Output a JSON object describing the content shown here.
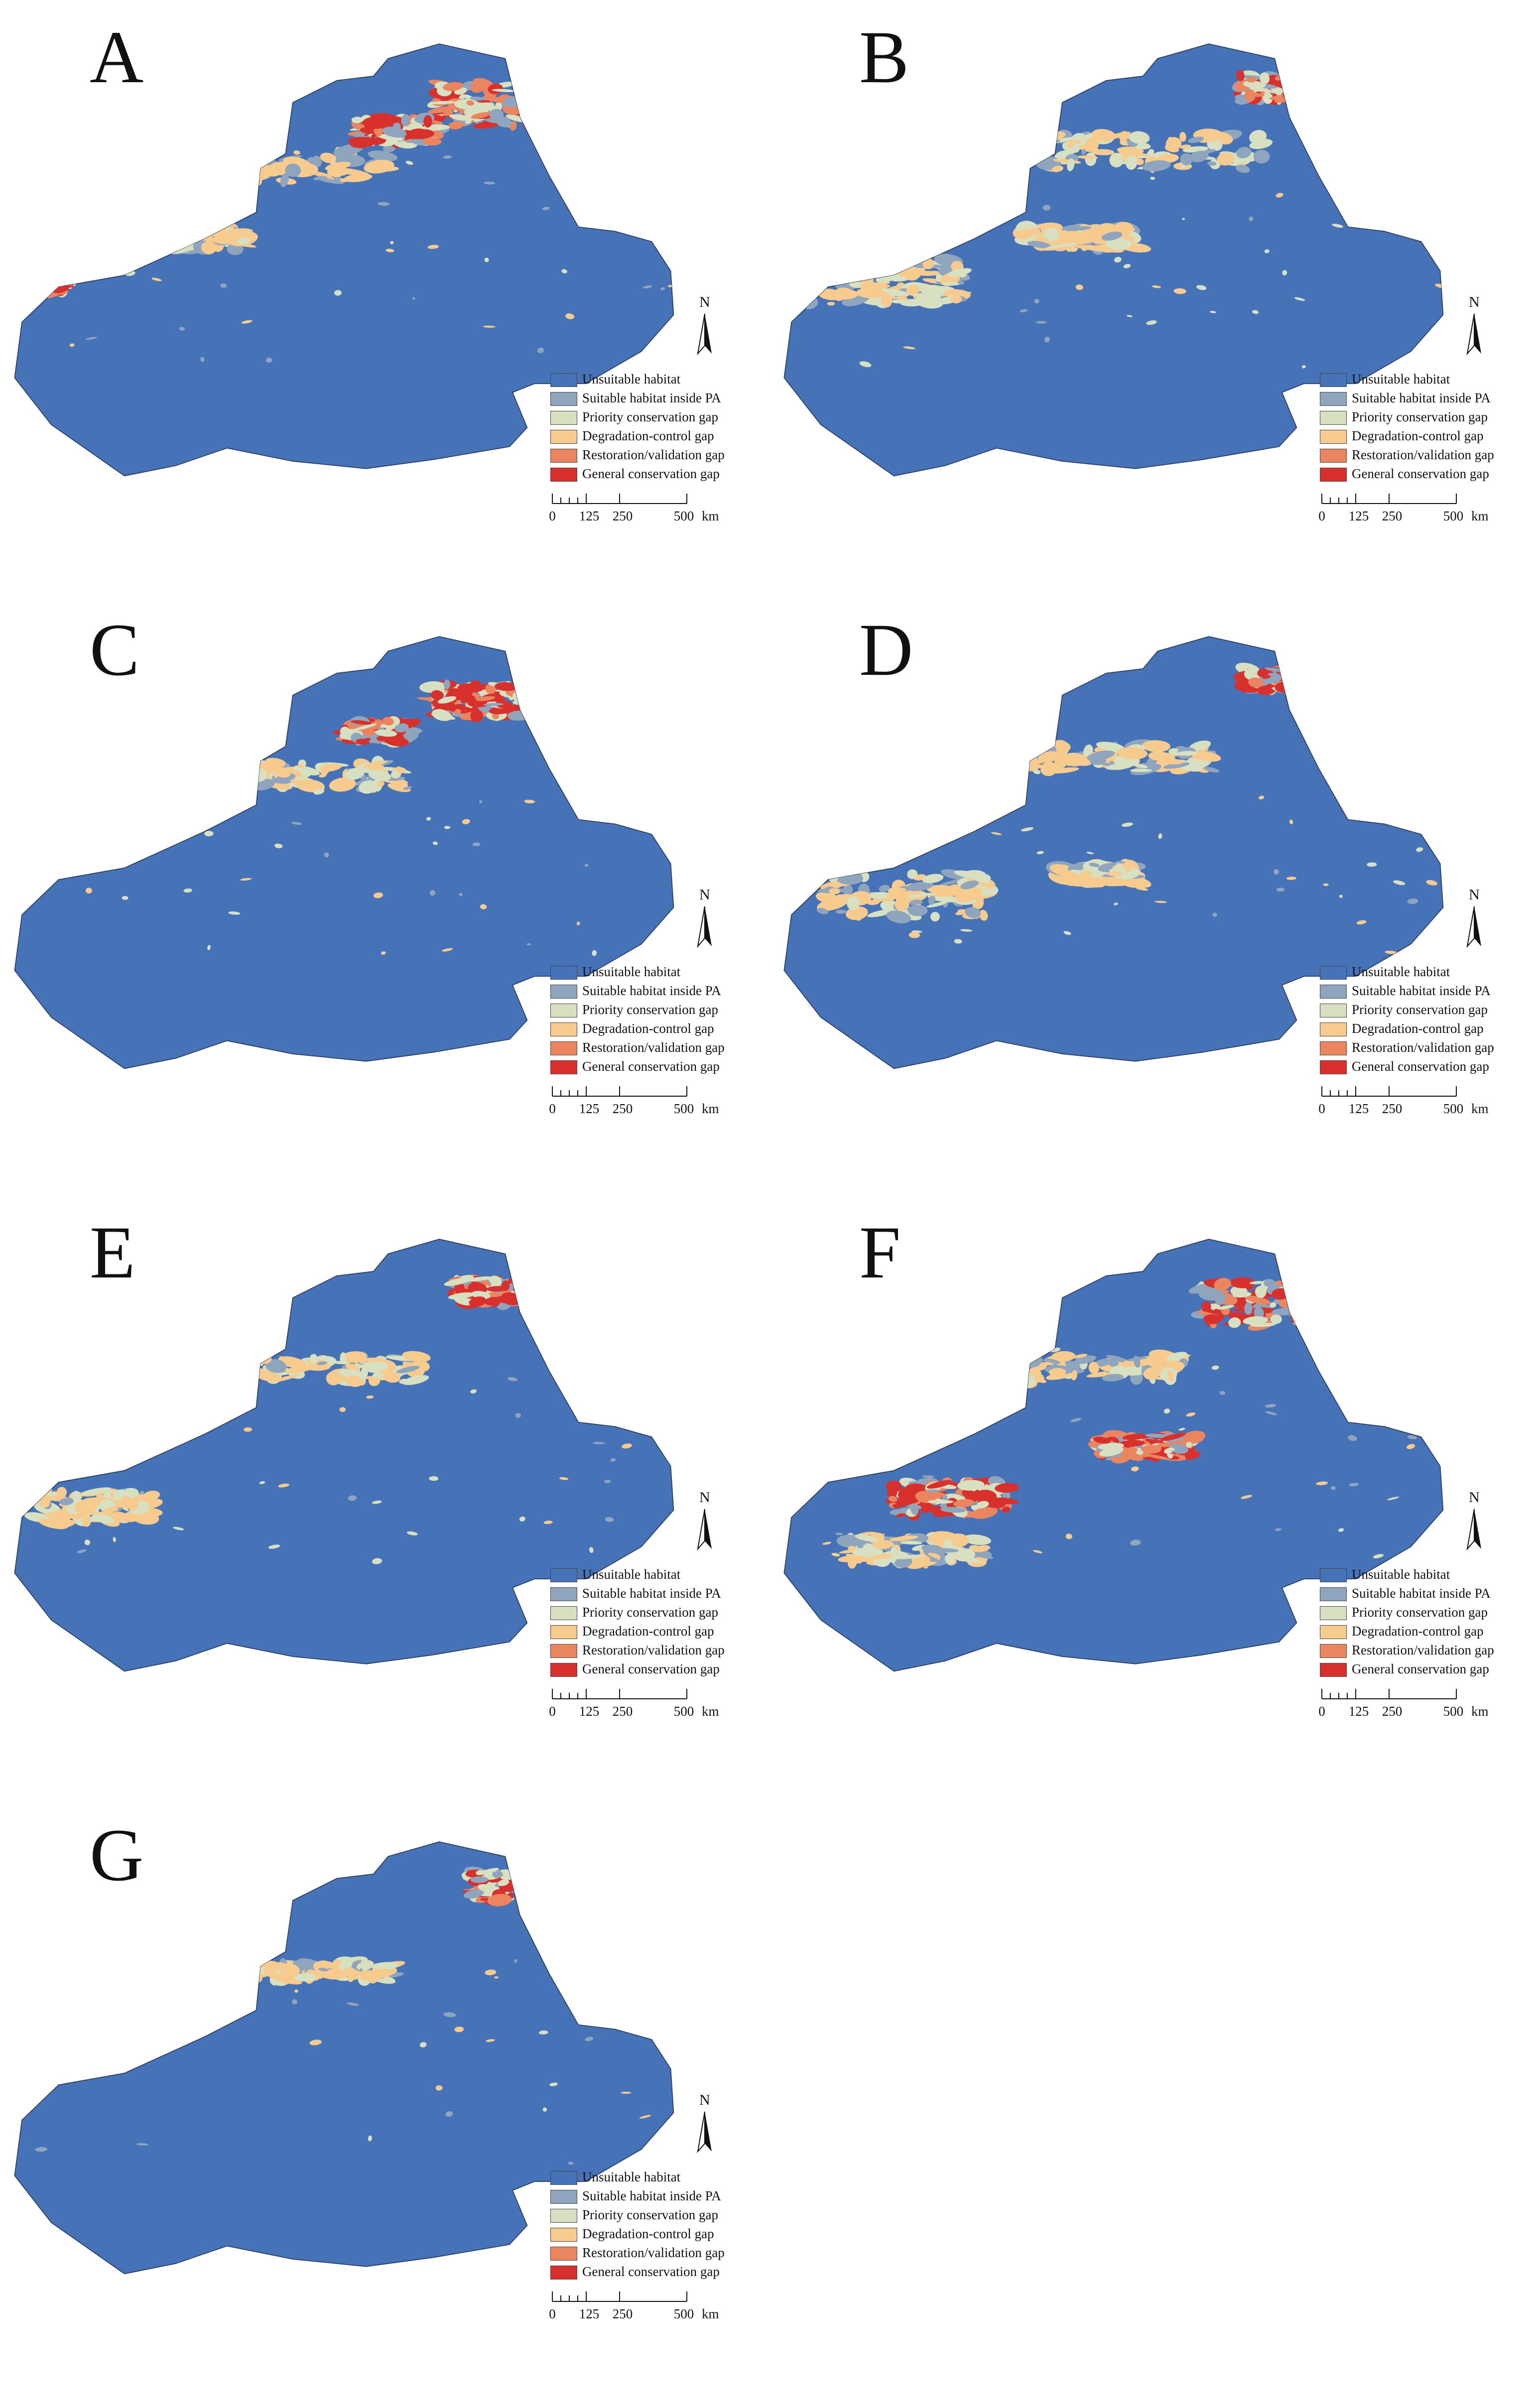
{
  "panels": [
    {
      "letter": "A",
      "seed": 11,
      "hot": [
        [
          0.72,
          0.14,
          0.16,
          0.1
        ],
        [
          0.58,
          0.2,
          0.12,
          0.06
        ],
        [
          0.05,
          0.55,
          0.06,
          0.05
        ]
      ],
      "pale": [
        [
          0.4,
          0.28,
          0.35,
          0.08
        ],
        [
          0.25,
          0.45,
          0.2,
          0.05
        ]
      ]
    },
    {
      "letter": "B",
      "seed": 23,
      "hot": [
        [
          0.75,
          0.1,
          0.12,
          0.06
        ]
      ],
      "pale": [
        [
          0.55,
          0.25,
          0.35,
          0.08
        ],
        [
          0.15,
          0.55,
          0.25,
          0.1
        ],
        [
          0.45,
          0.45,
          0.18,
          0.05
        ]
      ]
    },
    {
      "letter": "C",
      "seed": 37,
      "hot": [
        [
          0.7,
          0.15,
          0.14,
          0.08
        ],
        [
          0.55,
          0.22,
          0.1,
          0.05
        ]
      ],
      "pale": [
        [
          0.45,
          0.32,
          0.3,
          0.06
        ]
      ]
    },
    {
      "letter": "D",
      "seed": 41,
      "hot": [
        [
          0.74,
          0.1,
          0.08,
          0.05
        ]
      ],
      "pale": [
        [
          0.5,
          0.28,
          0.3,
          0.06
        ],
        [
          0.18,
          0.6,
          0.25,
          0.1
        ],
        [
          0.48,
          0.55,
          0.12,
          0.04
        ]
      ]
    },
    {
      "letter": "E",
      "seed": 53,
      "hot": [
        [
          0.72,
          0.12,
          0.1,
          0.06
        ]
      ],
      "pale": [
        [
          0.45,
          0.3,
          0.32,
          0.06
        ],
        [
          0.12,
          0.62,
          0.18,
          0.08
        ]
      ]
    },
    {
      "letter": "F",
      "seed": 67,
      "hot": [
        [
          0.72,
          0.15,
          0.18,
          0.1
        ],
        [
          0.25,
          0.6,
          0.18,
          0.08
        ],
        [
          0.55,
          0.48,
          0.15,
          0.05
        ]
      ],
      "pale": [
        [
          0.45,
          0.3,
          0.32,
          0.06
        ],
        [
          0.2,
          0.72,
          0.2,
          0.06
        ]
      ]
    },
    {
      "letter": "G",
      "seed": 79,
      "hot": [
        [
          0.74,
          0.1,
          0.09,
          0.07
        ]
      ],
      "pale": [
        [
          0.45,
          0.3,
          0.25,
          0.04
        ]
      ]
    }
  ],
  "legend": [
    {
      "label": "Unsuitable habitat",
      "color": "#4672b7"
    },
    {
      "label": "Suitable habitat inside PA",
      "color": "#8fa4bd"
    },
    {
      "label": "Priority conservation gap",
      "color": "#d7e1c1"
    },
    {
      "label": "Degradation-control gap",
      "color": "#f6cb8d"
    },
    {
      "label": "Restoration/validation gap",
      "color": "#ea8560"
    },
    {
      "label": "General conservation gap",
      "color": "#d8302c"
    }
  ],
  "north_label": "N",
  "scale": {
    "ticks": [
      "0",
      "125",
      "250",
      "500"
    ],
    "unit": "km"
  }
}
